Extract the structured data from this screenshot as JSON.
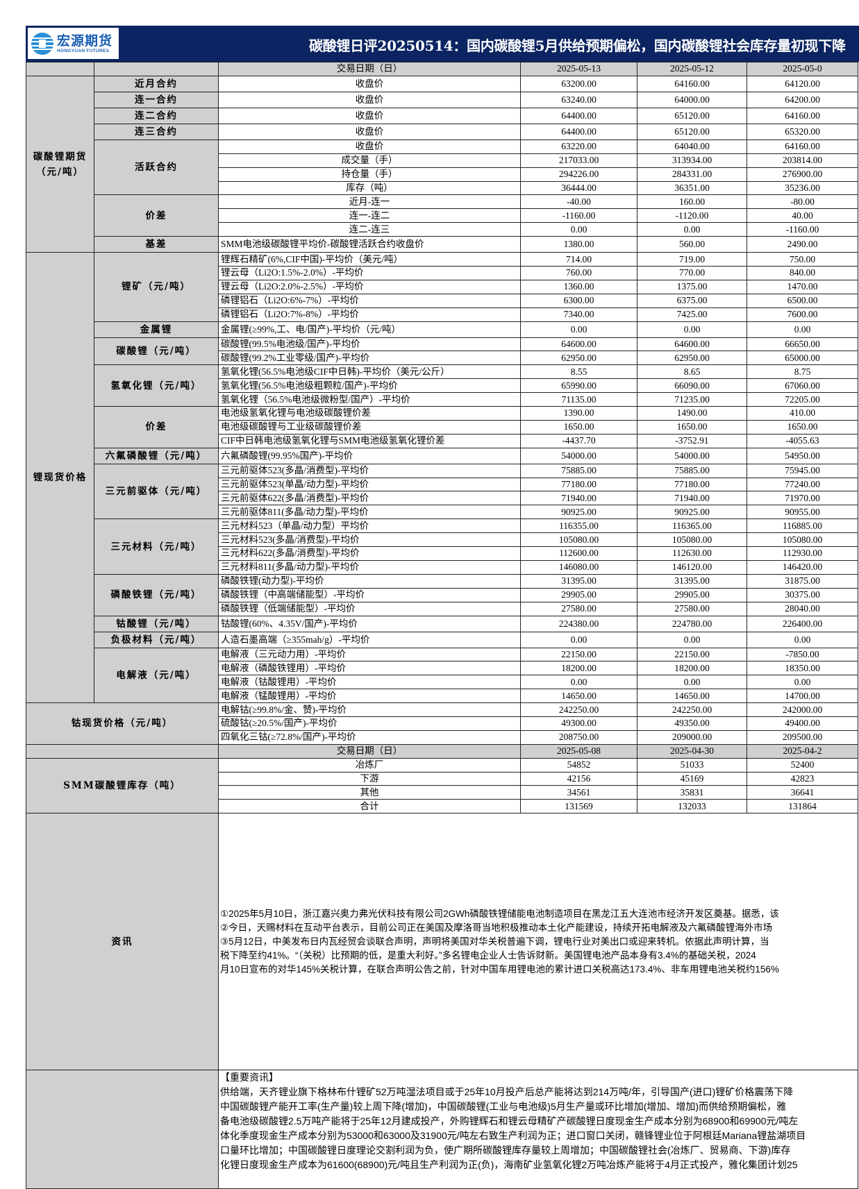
{
  "header": {
    "logo_cn": "宏源期货",
    "logo_en": "HONGYUAN FUTURES",
    "title": "碳酸锂日评20250514：国内碳酸锂5月供给预期偏松，国内碳酸锂社会库存量初现下降",
    "brand_color": "#0c2461"
  },
  "table_head": {
    "item": "交易日期（日）",
    "dates": [
      "2025-05-13",
      "2025-05-12",
      "2025-05-0"
    ]
  },
  "sections": [
    {
      "label": "碳酸锂期货\n（元/吨）",
      "groups": [
        {
          "label": "近月合约",
          "rows": [
            {
              "item": "收盘价",
              "values": [
                "63200.00",
                "64160.00",
                "64120.00"
              ]
            }
          ]
        },
        {
          "label": "连一合约",
          "rows": [
            {
              "item": "收盘价",
              "values": [
                "63240.00",
                "64000.00",
                "64200.00"
              ]
            }
          ]
        },
        {
          "label": "连二合约",
          "rows": [
            {
              "item": "收盘价",
              "values": [
                "64400.00",
                "65120.00",
                "64160.00"
              ]
            }
          ]
        },
        {
          "label": "连三合约",
          "rows": [
            {
              "item": "收盘价",
              "values": [
                "64400.00",
                "65120.00",
                "65320.00"
              ]
            }
          ]
        },
        {
          "label": "活跃合约",
          "rows": [
            {
              "item": "收盘价",
              "values": [
                "63220.00",
                "64040.00",
                "64160.00"
              ]
            },
            {
              "item": "成交量（手）",
              "values": [
                "217033.00",
                "313934.00",
                "203814.00"
              ]
            },
            {
              "item": "持仓量（手）",
              "values": [
                "294226.00",
                "284331.00",
                "276900.00"
              ]
            },
            {
              "item": "库存（吨）",
              "values": [
                "36444.00",
                "36351.00",
                "35236.00"
              ]
            }
          ]
        },
        {
          "label": "价差",
          "rows": [
            {
              "item": "近月-连一",
              "values": [
                "-40.00",
                "160.00",
                "-80.00"
              ]
            },
            {
              "item": "连一-连二",
              "values": [
                "-1160.00",
                "-1120.00",
                "40.00"
              ]
            },
            {
              "item": "连二-连三",
              "values": [
                "0.00",
                "0.00",
                "-1160.00"
              ]
            }
          ]
        },
        {
          "label": "基差",
          "rows": [
            {
              "item": "SMM电池级碳酸锂平均价-碳酸锂活跃合约收盘价",
              "values": [
                "1380.00",
                "560.00",
                "2490.00"
              ]
            }
          ]
        }
      ]
    },
    {
      "label": "锂现货价格",
      "groups": [
        {
          "label": "锂矿（元/吨）",
          "rows": [
            {
              "item": "锂辉石精矿(6%,CIF中国)-平均价（美元/吨）",
              "values": [
                "714.00",
                "719.00",
                "750.00"
              ]
            },
            {
              "item": "锂云母（Li2O:1.5%-2.0%）-平均价",
              "values": [
                "760.00",
                "770.00",
                "840.00"
              ]
            },
            {
              "item": "锂云母（Li2O:2.0%-2.5%）-平均价",
              "values": [
                "1360.00",
                "1375.00",
                "1470.00"
              ]
            },
            {
              "item": "磷锂铝石（Li2O:6%-7%）-平均价",
              "values": [
                "6300.00",
                "6375.00",
                "6500.00"
              ]
            },
            {
              "item": "磷锂铝石（Li2O:7%-8%）-平均价",
              "values": [
                "7340.00",
                "7425.00",
                "7600.00"
              ]
            }
          ]
        },
        {
          "label": "金属锂",
          "rows": [
            {
              "item": "金属锂(≥99%,工、电/国产)-平均价（元/吨）",
              "values": [
                "0.00",
                "0.00",
                "0.00"
              ]
            }
          ]
        },
        {
          "label": "碳酸锂（元/吨）",
          "rows": [
            {
              "item": "碳酸锂(99.5%电池级/国产)-平均价",
              "values": [
                "64600.00",
                "64600.00",
                "66650.00"
              ]
            },
            {
              "item": "碳酸锂(99.2%工业零级/国产)-平均价",
              "values": [
                "62950.00",
                "62950.00",
                "65000.00"
              ]
            }
          ]
        },
        {
          "label": "氢氧化锂（元/吨）",
          "rows": [
            {
              "item": "氢氧化锂(56.5%电池级CIF中日韩)-平均价（美元/公斤）",
              "values": [
                "8.55",
                "8.65",
                "8.75"
              ]
            },
            {
              "item": "氢氧化锂(56.5%电池级粗颗粒/国产)-平均价",
              "values": [
                "65990.00",
                "66090.00",
                "67060.00"
              ]
            },
            {
              "item": "氢氧化锂（56.5%电池级微粉型/国产）-平均价",
              "values": [
                "71135.00",
                "71235.00",
                "72205.00"
              ]
            }
          ]
        },
        {
          "label": "价差",
          "rows": [
            {
              "item": "电池级氢氧化锂与电池级碳酸锂价差",
              "values": [
                "1390.00",
                "1490.00",
                "410.00"
              ]
            },
            {
              "item": "电池级碳酸锂与工业级碳酸锂价差",
              "values": [
                "1650.00",
                "1650.00",
                "1650.00"
              ]
            },
            {
              "item": "CIF中日韩电池级氢氧化锂与SMM电池级氢氧化锂价差",
              "values": [
                "-4437.70",
                "-3752.91",
                "-4055.63"
              ]
            }
          ]
        },
        {
          "label": "六氟磷酸锂（元/吨）",
          "rows": [
            {
              "item": "六氟磷酸锂(99.95%国产)-平均价",
              "values": [
                "54000.00",
                "54000.00",
                "54950.00"
              ]
            }
          ]
        },
        {
          "label": "三元前驱体（元/吨）",
          "rows": [
            {
              "item": "三元前驱体523(多晶/消费型)-平均价",
              "values": [
                "75885.00",
                "75885.00",
                "75945.00"
              ]
            },
            {
              "item": "三元前驱体523(单晶/动力型)-平均价",
              "values": [
                "77180.00",
                "77180.00",
                "77240.00"
              ]
            },
            {
              "item": "三元前驱体622(多晶/消费型)-平均价",
              "values": [
                "71940.00",
                "71940.00",
                "71970.00"
              ]
            },
            {
              "item": "三元前驱体811(多晶/动力型)-平均价",
              "values": [
                "90925.00",
                "90925.00",
                "90955.00"
              ]
            }
          ]
        },
        {
          "label": "三元材料（元/吨）",
          "rows": [
            {
              "item": "三元材料523（单晶/动力型）平均价",
              "values": [
                "116355.00",
                "116365.00",
                "116885.00"
              ]
            },
            {
              "item": "三元材料523(多晶/消费型)-平均价",
              "values": [
                "105080.00",
                "105080.00",
                "105080.00"
              ]
            },
            {
              "item": "三元材料622(多晶/消费型)-平均价",
              "values": [
                "112600.00",
                "112630.00",
                "112930.00"
              ]
            },
            {
              "item": "三元材料811(多晶/动力型)-平均价",
              "values": [
                "146080.00",
                "146120.00",
                "146420.00"
              ]
            }
          ]
        },
        {
          "label": "磷酸铁锂（元/吨）",
          "rows": [
            {
              "item": "磷酸铁锂(动力型)-平均价",
              "values": [
                "31395.00",
                "31395.00",
                "31875.00"
              ]
            },
            {
              "item": "磷酸铁锂（中高端储能型）-平均价",
              "values": [
                "29905.00",
                "29905.00",
                "30375.00"
              ]
            },
            {
              "item": "磷酸铁锂（低端储能型）-平均价",
              "values": [
                "27580.00",
                "27580.00",
                "28040.00"
              ]
            }
          ]
        },
        {
          "label": "钴酸锂（元/吨）",
          "rows": [
            {
              "item": "钴酸锂(60%、4.35V/国产)-平均价",
              "values": [
                "224380.00",
                "224780.00",
                "226400.00"
              ]
            }
          ]
        },
        {
          "label": "负极材料（元/吨）",
          "rows": [
            {
              "item": "人造石墨高端（≥355mah/g）-平均价",
              "values": [
                "0.00",
                "0.00",
                "0.00"
              ]
            }
          ]
        },
        {
          "label": "电解液（元/吨）",
          "rows": [
            {
              "item": "电解液（三元动力用）-平均价",
              "values": [
                "22150.00",
                "22150.00",
                "-7850.00"
              ]
            },
            {
              "item": "电解液（磷酸铁锂用）-平均价",
              "values": [
                "18200.00",
                "18200.00",
                "18350.00"
              ]
            },
            {
              "item": "电解液（钴酸锂用）-平均价",
              "values": [
                "0.00",
                "0.00",
                "0.00"
              ]
            },
            {
              "item": "电解液（锰酸锂用）-平均价",
              "values": [
                "14650.00",
                "14650.00",
                "14700.00"
              ]
            }
          ]
        }
      ]
    }
  ],
  "cobalt": {
    "label": "钴现货价格（元/吨）",
    "rows": [
      {
        "item": "电解钴(≥99.8%/金、赞)-平均价",
        "values": [
          "242250.00",
          "242250.00",
          "242000.00"
        ]
      },
      {
        "item": "硫酸钴(≥20.5%/国产)-平均价",
        "values": [
          "49300.00",
          "49350.00",
          "49400.00"
        ]
      },
      {
        "item": "四氧化三钴(≥72.8%/国产)-平均价",
        "values": [
          "208750.00",
          "209000.00",
          "209500.00"
        ]
      }
    ]
  },
  "smm": {
    "label": "SMM碳酸锂库存（吨）",
    "head": {
      "item": "交易日期（日）",
      "dates": [
        "2025-05-08",
        "2025-04-30",
        "2025-04-2"
      ]
    },
    "rows": [
      {
        "item": "冶炼厂",
        "values": [
          "54852",
          "51033",
          "52400"
        ]
      },
      {
        "item": "下游",
        "values": [
          "42156",
          "45169",
          "42823"
        ]
      },
      {
        "item": "其他",
        "values": [
          "34561",
          "35831",
          "36641"
        ]
      },
      {
        "item": "合计",
        "values": [
          "131569",
          "132033",
          "131864"
        ]
      }
    ]
  },
  "news": {
    "label": "资讯",
    "lines": [
      "①2025年5月10日，浙江嘉兴奥力弗光伏科技有限公司2GWh磷酸铁锂储能电池制造项目在黑龙江五大连池市经济开发区奠基。据悉，该",
      "②今日，天赐材料在互动平台表示，目前公司正在美国及摩洛哥当地积极推动本土化产能建设，持续开拓电解液及六氟磷酸锂海外市场",
      "③5月12日，中美发布日内瓦经贸会谈联合声明，声明将美国对华关税普遍下调，锂电行业对美出口或迎来转机。依据此声明计算，当",
      "税下降至约41%。“（关税）比预期的低，是重大利好。”多名锂电企业人士告诉财新。美国锂电池产品本身有3.4%的基础关税，2024",
      "月10日宣布的对华145%关税计算，在联合声明公告之前，针对中国车用锂电池的累计进口关税高达173.4%、非车用锂电池关税约156%"
    ]
  },
  "important": {
    "label": "",
    "lines": [
      "【重要资讯】",
      "供给端，天齐锂业旗下格林布什锂矿52万吨湿法项目或于25年10月投产后总产能将达到214万吨/年，引导国产(进口)锂矿价格震荡下降",
      "中国碳酸锂产能开工率(生产量)较上周下降(增加)，中国碳酸锂(工业与电池级)5月生产量或环比增加(增加、增加)而供给预期偏松，雅",
      "备电池级碳酸锂2.5万吨产能将于25年12月建成投产，外购锂辉石和锂云母精矿产碳酸锂日度现金生产成本分别为68900和69900元/吨左",
      "体化季度现金生产成本分别为53000和63000及31900元/吨左右致生产利润为正；进口窗口关闭，赣锋锂业位于阿根廷Mariana锂盐湖项目",
      "口量环比增加；中国碳酸锂日度理论交割利润为负，使广期所碳酸锂库存量较上周增加；中国碳酸锂社会(冶炼厂、贸易商、下游)库存",
      "化锂日度现金生产成本为61600(68900)元/吨且生产利润为正(负)，海南矿业氢氧化锂2万吨冶炼产能将于4月正式投产，雅化集团计划25"
    ]
  }
}
